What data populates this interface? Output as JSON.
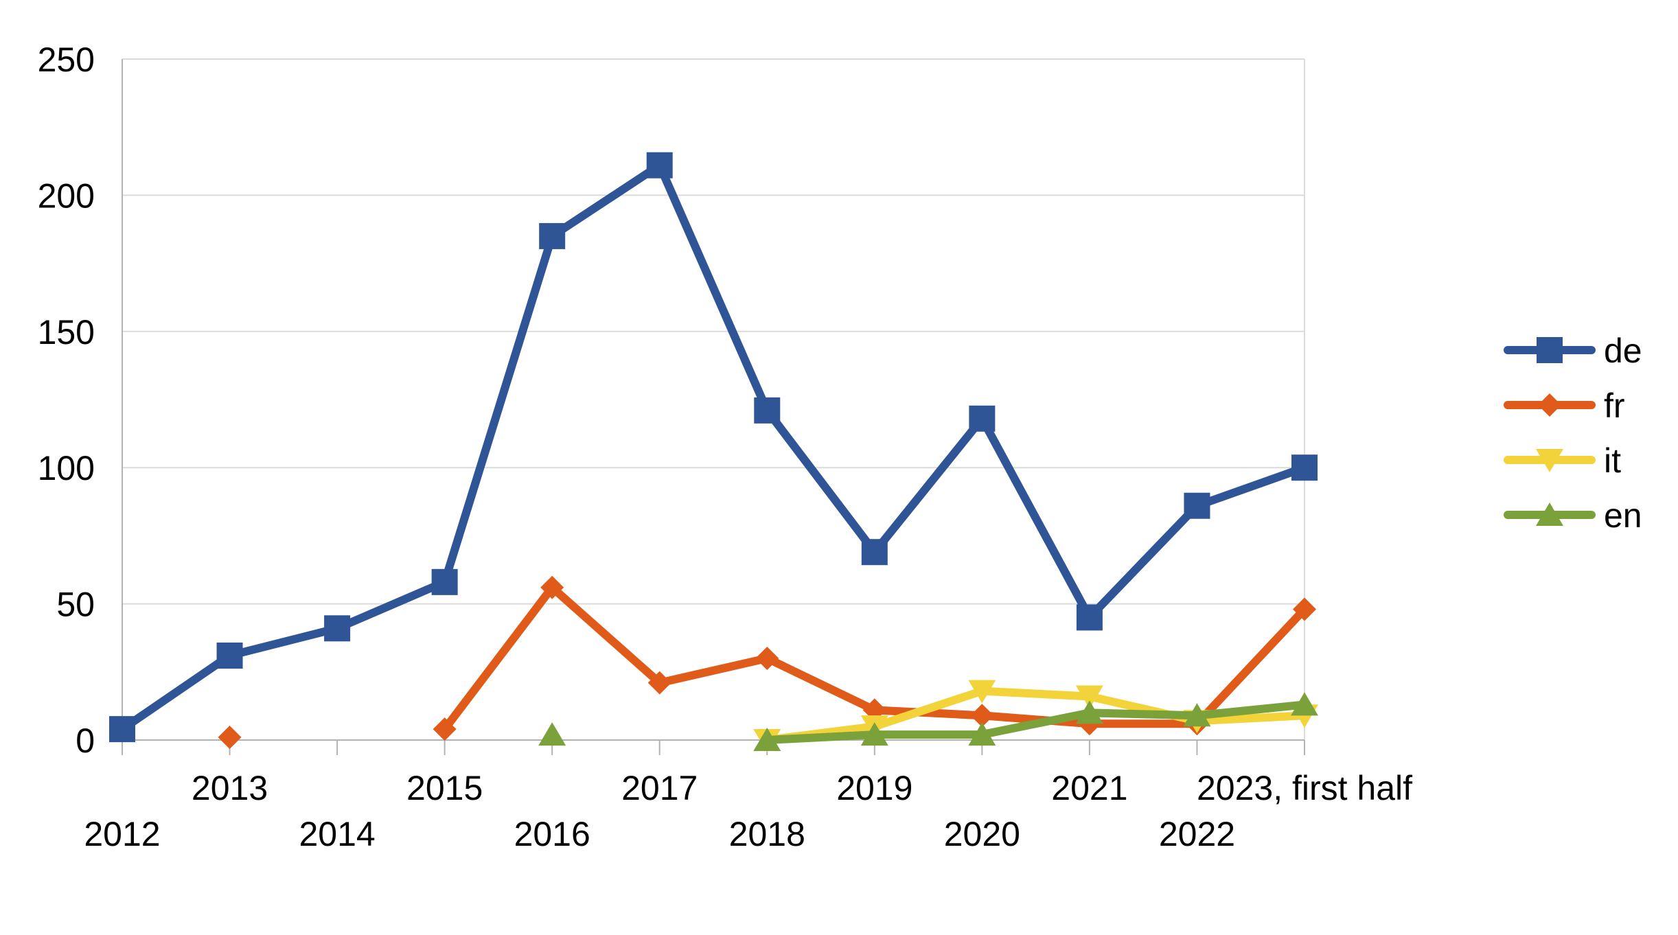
{
  "chart_data": {
    "type": "line",
    "categories": [
      "2012",
      "2013",
      "2014",
      "2015",
      "2016",
      "2017",
      "2018",
      "2019",
      "2020",
      "2021",
      "2022",
      "2023, first half"
    ],
    "ylim": [
      0,
      250
    ],
    "yticks": [
      0,
      50,
      100,
      150,
      200,
      250
    ],
    "grid": true,
    "legend_position": "right",
    "series": [
      {
        "name": "de",
        "color": "#2f5597",
        "marker": "square",
        "values": [
          4,
          31,
          41,
          58,
          185,
          211,
          121,
          69,
          118,
          45,
          86,
          100
        ]
      },
      {
        "name": "fr",
        "color": "#e05a1a",
        "marker": "diamond",
        "values": [
          null,
          1,
          null,
          4,
          56,
          21,
          30,
          11,
          9,
          6,
          6,
          48
        ]
      },
      {
        "name": "it",
        "color": "#f2d43a",
        "marker": "triangle-down",
        "values": [
          null,
          null,
          null,
          null,
          null,
          null,
          0,
          5,
          18,
          16,
          7,
          9
        ]
      },
      {
        "name": "en",
        "color": "#7ba23a",
        "marker": "triangle-up",
        "values": [
          null,
          null,
          null,
          null,
          2,
          null,
          0,
          2,
          2,
          10,
          9,
          13
        ]
      }
    ]
  }
}
